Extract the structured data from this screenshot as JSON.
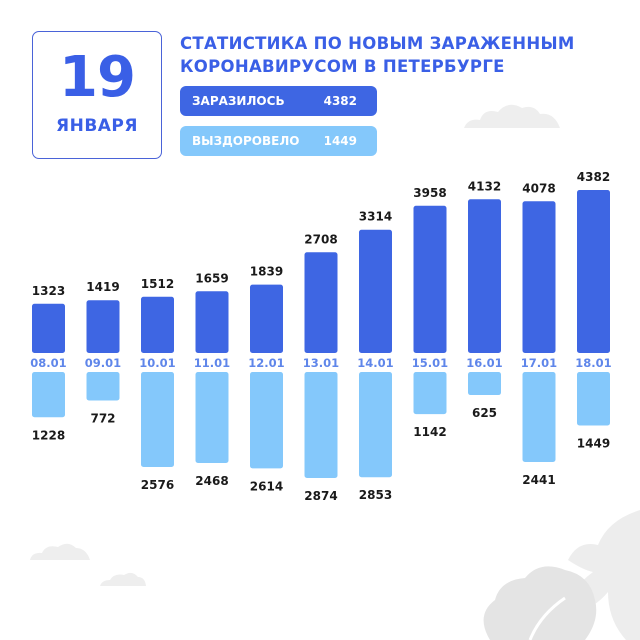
{
  "date_card": {
    "day": "19",
    "month": "ЯНВАРЯ"
  },
  "title": {
    "line1": "СТАТИСТИКА ПО НОВЫМ ЗАРАЖЕННЫМ",
    "line2": "КОРОНАВИРУСОМ В ПЕТЕРБУРГЕ"
  },
  "legend": {
    "infected": {
      "label": "ЗАРАЗИЛОСЬ",
      "value": "4382",
      "color": "#3e66e3"
    },
    "recovered": {
      "label": "ВЫЗДОРОВЕЛО",
      "value": "1449",
      "color": "#84c8fb"
    }
  },
  "chart_data": {
    "type": "bar",
    "categories": [
      "08.01",
      "09.01",
      "10.01",
      "11.01",
      "12.01",
      "13.01",
      "14.01",
      "15.01",
      "16.01",
      "17.01",
      "18.01"
    ],
    "series": [
      {
        "name": "ЗАРАЗИЛОСЬ",
        "direction": "up",
        "values": [
          1323,
          1419,
          1512,
          1659,
          1839,
          2708,
          3314,
          3958,
          4132,
          4078,
          4382
        ]
      },
      {
        "name": "ВЫЗДОРОВЕЛО",
        "direction": "down",
        "values": [
          1228,
          772,
          2576,
          2468,
          2614,
          2874,
          2853,
          1142,
          625,
          2441,
          1449
        ]
      }
    ],
    "ylim": [
      0,
      4382
    ],
    "grid": false,
    "legend": "top"
  }
}
